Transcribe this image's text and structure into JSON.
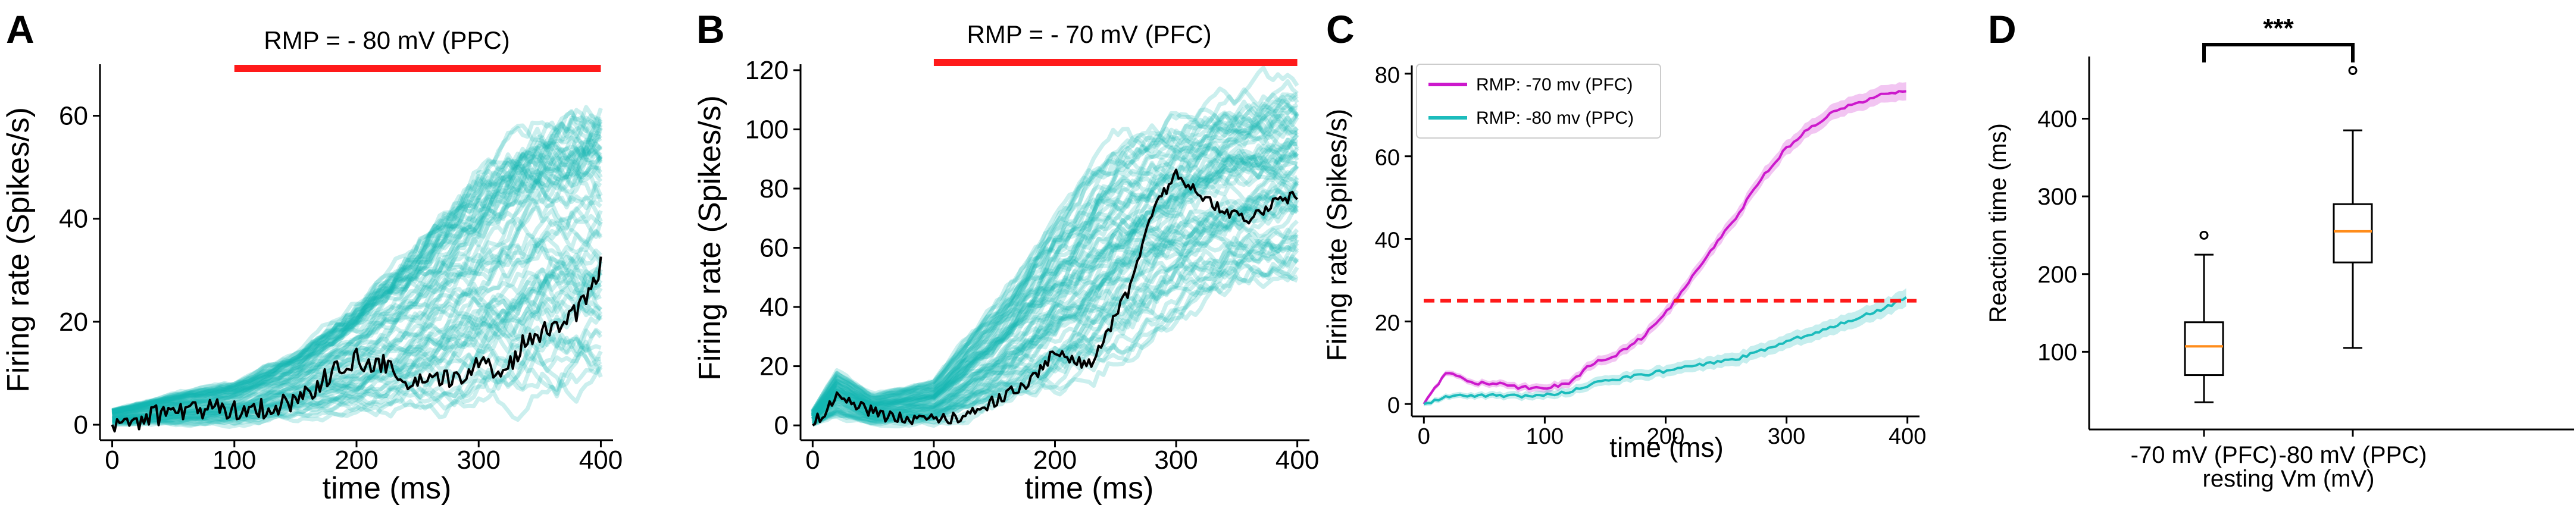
{
  "panels": {
    "a": {
      "letter": "A"
    },
    "b": {
      "letter": "B"
    },
    "c": {
      "letter": "C"
    },
    "d": {
      "letter": "D"
    }
  },
  "colors": {
    "trial_traces": "#12b4b0",
    "mean_trace": "#000000",
    "stim_bar": "#ff1a1a",
    "pfc": "#cc19cc",
    "ppc": "#1cbcbc",
    "threshold": "#ff1a1a",
    "box_median": "#ff8c1a",
    "box_edge": "#000000"
  },
  "chart_data": [
    {
      "id": "panel-a",
      "type": "line",
      "title": "RMP = - 80 mV (PPC)",
      "xlabel": "time (ms)",
      "ylabel": "Firing rate (Spikes/s)",
      "xlim": [
        -10,
        410
      ],
      "ylim": [
        -3,
        70
      ],
      "xticks": [
        0,
        100,
        200,
        300,
        400
      ],
      "yticks": [
        0,
        20,
        40,
        60
      ],
      "stim_bar": {
        "x_start": 100,
        "x_end": 400
      },
      "trial_envelope": {
        "x": [
          0,
          50,
          100,
          150,
          200,
          250,
          300,
          350,
          400
        ],
        "low": [
          0,
          0,
          0,
          1,
          2,
          3,
          4,
          6,
          8
        ],
        "high": [
          3,
          6,
          8,
          14,
          24,
          36,
          50,
          60,
          64
        ]
      },
      "mean_trace": {
        "x": [
          0,
          20,
          40,
          60,
          80,
          100,
          120,
          140,
          160,
          180,
          200,
          210,
          220,
          240,
          260,
          280,
          300,
          320,
          340,
          360,
          380,
          390,
          400
        ],
        "y": [
          0,
          1,
          2,
          3,
          3,
          3,
          3,
          4,
          6,
          10,
          13,
          11,
          12,
          8,
          8,
          9,
          12,
          10,
          17,
          19,
          22,
          26,
          31
        ]
      }
    },
    {
      "id": "panel-b",
      "type": "line",
      "title": "RMP = - 70 mV (PFC)",
      "xlabel": "time (ms)",
      "ylabel": "Firing rate (Spikes/s)",
      "xlim": [
        -10,
        410
      ],
      "ylim": [
        -5,
        122
      ],
      "xticks": [
        0,
        100,
        200,
        300,
        400
      ],
      "yticks": [
        0,
        20,
        40,
        60,
        80,
        100,
        120
      ],
      "stim_bar": {
        "x_start": 100,
        "x_end": 400
      },
      "trial_envelope": {
        "x": [
          0,
          20,
          50,
          100,
          150,
          200,
          250,
          300,
          350,
          400
        ],
        "low": [
          0,
          3,
          0,
          0,
          5,
          10,
          20,
          35,
          45,
          50
        ],
        "high": [
          5,
          18,
          10,
          15,
          40,
          70,
          95,
          105,
          112,
          115
        ]
      },
      "mean_trace": {
        "x": [
          0,
          20,
          40,
          60,
          80,
          100,
          120,
          150,
          180,
          200,
          230,
          260,
          280,
          300,
          320,
          340,
          360,
          380,
          400
        ],
        "y": [
          0,
          10,
          6,
          3,
          2,
          2,
          3,
          8,
          15,
          25,
          20,
          45,
          72,
          85,
          78,
          72,
          70,
          75,
          78
        ]
      }
    },
    {
      "id": "panel-c",
      "type": "line",
      "title": "",
      "xlabel": "time (ms)",
      "ylabel": "Firing rate (Spikes/s)",
      "xlim": [
        -10,
        410
      ],
      "ylim": [
        -3,
        82
      ],
      "xticks": [
        0,
        100,
        200,
        300,
        400
      ],
      "yticks": [
        0,
        20,
        40,
        60,
        80
      ],
      "threshold": 25,
      "legend_position": "top-left",
      "series": [
        {
          "name": "RMP: -70 mv (PFC)",
          "x": [
            0,
            20,
            40,
            60,
            80,
            100,
            120,
            140,
            160,
            180,
            200,
            220,
            240,
            260,
            280,
            300,
            320,
            340,
            360,
            380,
            400
          ],
          "y": [
            0,
            8,
            5,
            5,
            4,
            4,
            5,
            10,
            12,
            16,
            22,
            30,
            38,
            46,
            55,
            62,
            67,
            71,
            73,
            75,
            76
          ]
        },
        {
          "name": "RMP: -80 mv (PPC)",
          "x": [
            0,
            20,
            40,
            60,
            80,
            100,
            120,
            140,
            160,
            180,
            200,
            220,
            240,
            260,
            280,
            300,
            320,
            340,
            360,
            380,
            400
          ],
          "y": [
            0,
            2,
            2,
            2,
            2,
            2,
            3,
            5,
            6,
            7,
            8,
            9,
            10,
            11,
            13,
            15,
            17,
            19,
            21,
            23,
            26
          ]
        }
      ]
    },
    {
      "id": "panel-d",
      "type": "box",
      "title": "",
      "xlabel": "resting Vm (mV)",
      "ylabel": "Reaction time (ms)",
      "ylim": [
        0,
        480
      ],
      "yticks": [
        100,
        200,
        300,
        400
      ],
      "significance": "***",
      "categories": [
        "-70 mV (PFC)",
        "-80 mV (PPC)"
      ],
      "boxes": [
        {
          "min": 35,
          "q1": 70,
          "median": 107,
          "q3": 138,
          "max": 225,
          "outliers": [
            250
          ]
        },
        {
          "min": 105,
          "q1": 215,
          "median": 255,
          "q3": 290,
          "max": 385,
          "outliers": [
            462
          ]
        }
      ]
    }
  ]
}
